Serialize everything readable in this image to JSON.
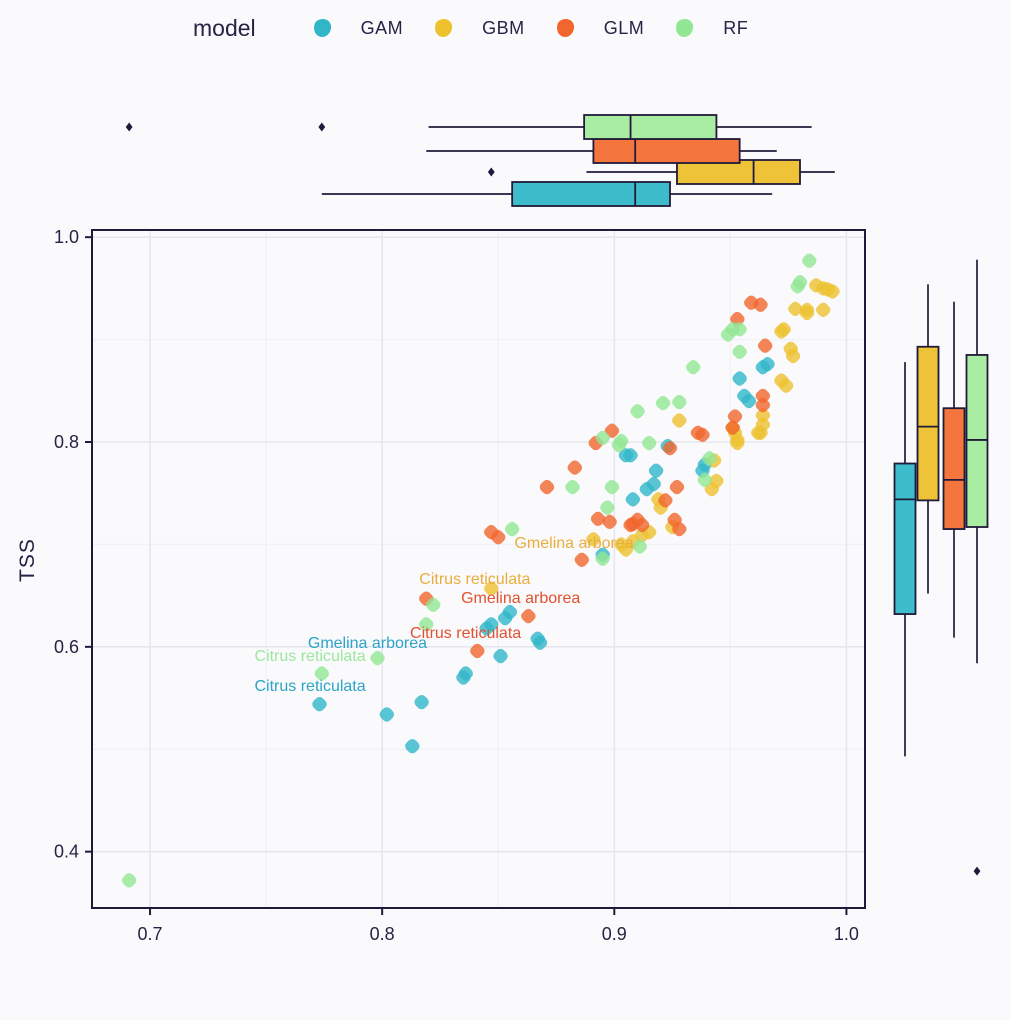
{
  "chart_data": {
    "type": "scatter",
    "title": "",
    "xlabel": "",
    "ylabel": "TSS",
    "legend": {
      "title": "model",
      "entries": [
        {
          "label": "GAM",
          "color": "#31b6c8"
        },
        {
          "label": "GBM",
          "color": "#eec22f"
        },
        {
          "label": "GLM",
          "color": "#f1662d"
        },
        {
          "label": "RF",
          "color": "#92e794"
        }
      ]
    },
    "label_colors": {
      "GAM": "#2ba4c6",
      "GBM": "#e9ad3c",
      "GLM": "#e2512e",
      "RF": "#9de79b"
    },
    "x_axis": {
      "ticks": [
        "0.7",
        "0.8",
        "0.9",
        "1.0"
      ],
      "values": [
        0.7,
        0.8,
        0.9,
        1.0
      ],
      "minor": [
        0.75,
        0.85,
        0.95
      ],
      "range": [
        0.675,
        1.008
      ],
      "grid": true
    },
    "y_axis": {
      "ticks": [
        "1.0",
        "0.8",
        "0.6",
        "0.4"
      ],
      "values": [
        1.0,
        0.8,
        0.6,
        0.4
      ],
      "minor": [
        0.9,
        0.7,
        0.5
      ],
      "range": [
        0.345,
        1.007
      ],
      "grid": true
    },
    "series": [
      {
        "name": "GAM",
        "color": "#31b6c8",
        "points": [
          [
            0.966,
            0.876
          ],
          [
            0.964,
            0.873
          ],
          [
            0.954,
            0.862
          ],
          [
            0.956,
            0.845
          ],
          [
            0.958,
            0.84
          ],
          [
            0.938,
            0.772
          ],
          [
            0.939,
            0.778
          ],
          [
            0.923,
            0.796
          ],
          [
            0.918,
            0.772
          ],
          [
            0.917,
            0.759
          ],
          [
            0.914,
            0.754
          ],
          [
            0.908,
            0.744
          ],
          [
            0.907,
            0.787
          ],
          [
            0.905,
            0.787
          ],
          [
            0.895,
            0.69
          ],
          [
            0.868,
            0.604
          ],
          [
            0.867,
            0.608
          ],
          [
            0.855,
            0.634
          ],
          [
            0.853,
            0.628
          ],
          [
            0.847,
            0.622
          ],
          [
            0.845,
            0.618
          ],
          [
            0.851,
            0.591
          ],
          [
            0.836,
            0.574
          ],
          [
            0.835,
            0.57
          ],
          [
            0.817,
            0.546
          ],
          [
            0.802,
            0.534
          ],
          [
            0.773,
            0.544
          ],
          [
            0.813,
            0.503
          ]
        ]
      },
      {
        "name": "GBM",
        "color": "#eec22f",
        "points": [
          [
            0.994,
            0.947
          ],
          [
            0.99,
            0.95
          ],
          [
            0.987,
            0.953
          ],
          [
            0.992,
            0.949
          ],
          [
            0.99,
            0.929
          ],
          [
            0.983,
            0.929
          ],
          [
            0.978,
            0.93
          ],
          [
            0.983,
            0.926
          ],
          [
            0.976,
            0.891
          ],
          [
            0.972,
            0.908
          ],
          [
            0.973,
            0.91
          ],
          [
            0.977,
            0.884
          ],
          [
            0.972,
            0.86
          ],
          [
            0.974,
            0.855
          ],
          [
            0.964,
            0.826
          ],
          [
            0.964,
            0.817
          ],
          [
            0.963,
            0.809
          ],
          [
            0.953,
            0.802
          ],
          [
            0.952,
            0.809
          ],
          [
            0.953,
            0.799
          ],
          [
            0.962,
            0.809
          ],
          [
            0.951,
            0.814
          ],
          [
            0.943,
            0.782
          ],
          [
            0.944,
            0.762
          ],
          [
            0.942,
            0.754
          ],
          [
            0.928,
            0.821
          ],
          [
            0.925,
            0.717
          ],
          [
            0.92,
            0.736
          ],
          [
            0.919,
            0.744
          ],
          [
            0.915,
            0.712
          ],
          [
            0.912,
            0.709
          ],
          [
            0.908,
            0.703
          ],
          [
            0.905,
            0.695
          ],
          [
            0.903,
            0.7
          ],
          [
            0.891,
            0.705
          ],
          [
            0.847,
            0.657
          ]
        ]
      },
      {
        "name": "GLM",
        "color": "#f1662d",
        "points": [
          [
            0.959,
            0.936
          ],
          [
            0.963,
            0.934
          ],
          [
            0.953,
            0.92
          ],
          [
            0.965,
            0.894
          ],
          [
            0.964,
            0.845
          ],
          [
            0.964,
            0.836
          ],
          [
            0.952,
            0.825
          ],
          [
            0.951,
            0.814
          ],
          [
            0.936,
            0.809
          ],
          [
            0.938,
            0.807
          ],
          [
            0.924,
            0.794
          ],
          [
            0.927,
            0.756
          ],
          [
            0.922,
            0.743
          ],
          [
            0.91,
            0.724
          ],
          [
            0.907,
            0.719
          ],
          [
            0.898,
            0.722
          ],
          [
            0.893,
            0.725
          ],
          [
            0.899,
            0.811
          ],
          [
            0.892,
            0.799
          ],
          [
            0.883,
            0.775
          ],
          [
            0.871,
            0.756
          ],
          [
            0.886,
            0.685
          ],
          [
            0.863,
            0.63
          ],
          [
            0.847,
            0.712
          ],
          [
            0.85,
            0.707
          ],
          [
            0.926,
            0.724
          ],
          [
            0.928,
            0.715
          ],
          [
            0.912,
            0.719
          ],
          [
            0.908,
            0.72
          ],
          [
            0.819,
            0.647
          ],
          [
            0.841,
            0.596
          ]
        ]
      },
      {
        "name": "RF",
        "color": "#92e794",
        "points": [
          [
            0.984,
            0.977
          ],
          [
            0.979,
            0.952
          ],
          [
            0.98,
            0.956
          ],
          [
            0.954,
            0.91
          ],
          [
            0.951,
            0.91
          ],
          [
            0.949,
            0.905
          ],
          [
            0.954,
            0.888
          ],
          [
            0.934,
            0.873
          ],
          [
            0.928,
            0.839
          ],
          [
            0.921,
            0.838
          ],
          [
            0.91,
            0.83
          ],
          [
            0.903,
            0.801
          ],
          [
            0.895,
            0.804
          ],
          [
            0.915,
            0.799
          ],
          [
            0.902,
            0.797
          ],
          [
            0.899,
            0.756
          ],
          [
            0.882,
            0.756
          ],
          [
            0.897,
            0.736
          ],
          [
            0.911,
            0.698
          ],
          [
            0.895,
            0.686
          ],
          [
            0.939,
            0.763
          ],
          [
            0.941,
            0.784
          ],
          [
            0.856,
            0.715
          ],
          [
            0.822,
            0.641
          ],
          [
            0.819,
            0.622
          ],
          [
            0.798,
            0.589
          ],
          [
            0.774,
            0.574
          ],
          [
            0.691,
            0.372
          ]
        ]
      }
    ],
    "point_labels": [
      {
        "text": "Gmelina arborea",
        "series": "GBM",
        "x": 0.857,
        "y": 0.7
      },
      {
        "text": "Citrus reticulata",
        "series": "GBM",
        "x": 0.816,
        "y": 0.665
      },
      {
        "text": "Gmelina arborea",
        "series": "GLM",
        "x": 0.834,
        "y": 0.647
      },
      {
        "text": "Citrus reticulata",
        "series": "GLM",
        "x": 0.812,
        "y": 0.613
      },
      {
        "text": "Gmelina arborea",
        "series": "GAM",
        "x": 0.768,
        "y": 0.603
      },
      {
        "text": "Citrus reticulata",
        "series": "RF",
        "x": 0.745,
        "y": 0.59
      },
      {
        "text": "Citrus reticulata",
        "series": "GAM",
        "x": 0.745,
        "y": 0.561
      }
    ],
    "marginal_top_boxplots": [
      {
        "name": "GAM",
        "color": "#3dbccb",
        "lo": 0.774,
        "q1": 0.856,
        "med": 0.909,
        "q3": 0.924,
        "hi": 0.968,
        "outliers": []
      },
      {
        "name": "GBM",
        "color": "#efc337",
        "lo": 0.888,
        "q1": 0.927,
        "med": 0.96,
        "q3": 0.98,
        "hi": 0.995,
        "outliers": [
          0.847
        ]
      },
      {
        "name": "GLM",
        "color": "#f4763c",
        "lo": 0.819,
        "q1": 0.891,
        "med": 0.909,
        "q3": 0.954,
        "hi": 0.97,
        "outliers": []
      },
      {
        "name": "RF",
        "color": "#a9eda2",
        "lo": 0.82,
        "q1": 0.887,
        "med": 0.907,
        "q3": 0.944,
        "hi": 0.985,
        "outliers": [
          0.691,
          0.774
        ]
      }
    ],
    "marginal_right_boxplots": [
      {
        "name": "GAM",
        "color": "#3dbccb",
        "lo": 0.493,
        "q1": 0.632,
        "med": 0.744,
        "q3": 0.779,
        "hi": 0.878,
        "outliers": []
      },
      {
        "name": "GBM",
        "color": "#efc337",
        "lo": 0.652,
        "q1": 0.743,
        "med": 0.815,
        "q3": 0.893,
        "hi": 0.954,
        "outliers": []
      },
      {
        "name": "GLM",
        "color": "#f4763c",
        "lo": 0.609,
        "q1": 0.715,
        "med": 0.763,
        "q3": 0.833,
        "hi": 0.937,
        "outliers": []
      },
      {
        "name": "RF",
        "color": "#a9eda2",
        "lo": 0.584,
        "q1": 0.717,
        "med": 0.802,
        "q3": 0.885,
        "hi": 0.978,
        "outliers": [
          0.381
        ]
      }
    ],
    "style": {
      "background": "#fafafd",
      "panel_border": "#201a3a",
      "grid_major": "#e6e6ee",
      "grid_minor": "#f1f1f7",
      "text_color": "#2a2145",
      "outlier_color": "#201a3a"
    }
  }
}
